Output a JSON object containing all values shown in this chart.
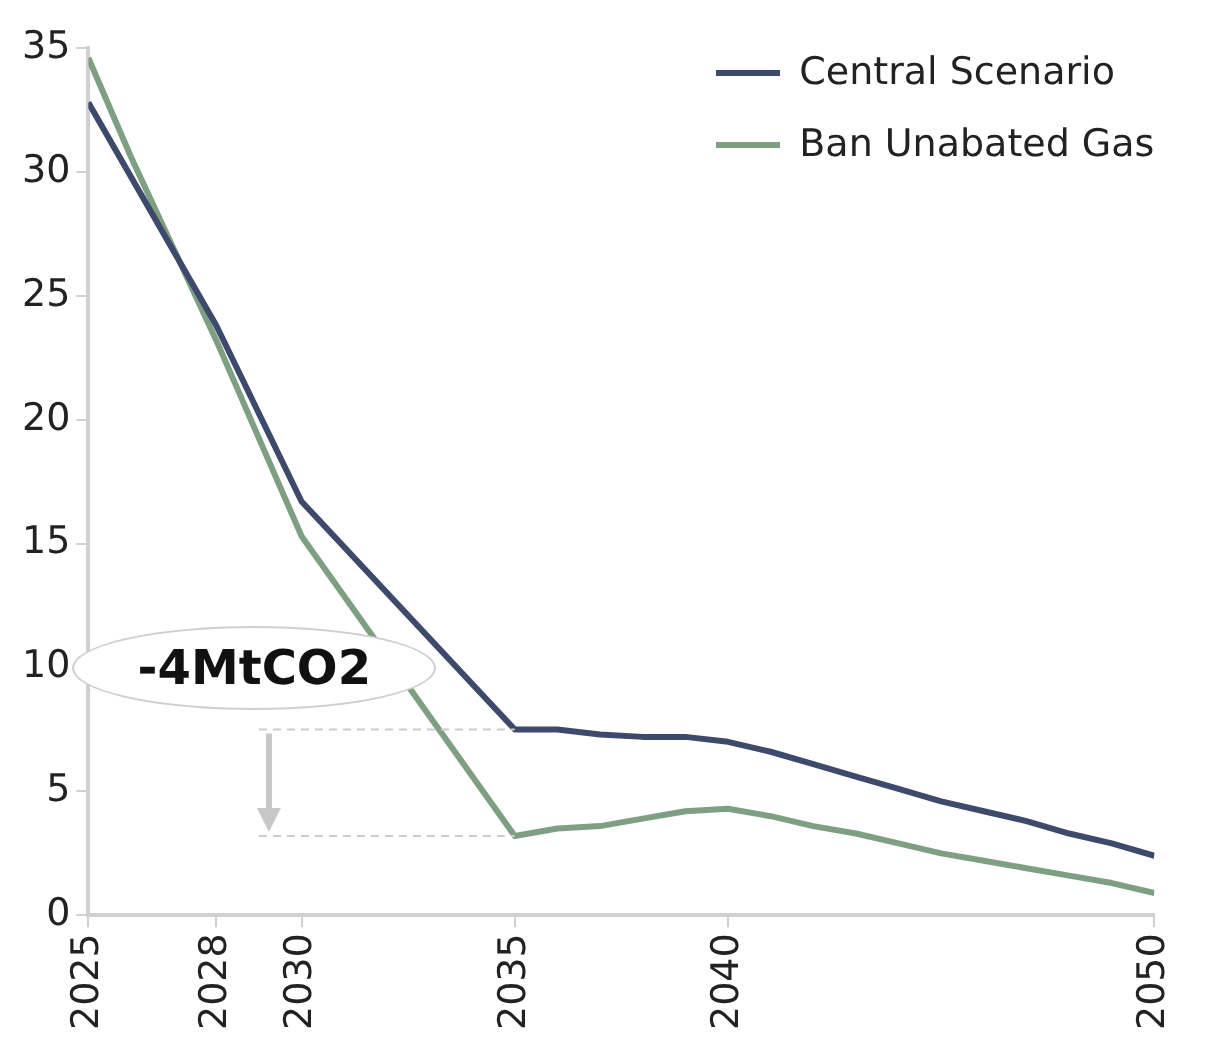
{
  "chart_data": {
    "type": "line",
    "xlim": [
      2025,
      2050
    ],
    "xticks": [
      2025,
      2028,
      2030,
      2035,
      2040,
      2050
    ],
    "ylim": [
      0,
      35
    ],
    "yticks": [
      0,
      5,
      10,
      15,
      20,
      25,
      30,
      35
    ],
    "grid": false,
    "legend": "top right",
    "marker": "none",
    "line_style": "solid",
    "annotations": [
      "-4MtCO2"
    ],
    "ref_lines": [
      {
        "axis": "y",
        "value": 7.5,
        "color": "#cccccc",
        "line_style": "dashed"
      },
      {
        "axis": "y",
        "value": 3.2,
        "color": "#cccccc",
        "line_style": "dashed"
      }
    ],
    "series": [
      {
        "name": "Central Scenario",
        "color": "#3d4a6b",
        "x": [
          2025,
          2028,
          2030,
          2035,
          2036,
          2037,
          2038,
          2039,
          2040,
          2041,
          2042,
          2043,
          2044,
          2045,
          2046,
          2047,
          2048,
          2049,
          2050
        ],
        "values": [
          32.8,
          23.8,
          16.7,
          7.5,
          7.5,
          7.3,
          7.2,
          7.2,
          7.0,
          6.6,
          6.1,
          5.6,
          5.1,
          4.6,
          4.2,
          3.8,
          3.3,
          2.9,
          2.4
        ]
      },
      {
        "name": "Ban Unabated Gas",
        "color": "#7f9f82",
        "x": [
          2025,
          2026,
          2028,
          2030,
          2035,
          2036,
          2037,
          2038,
          2039,
          2040,
          2041,
          2042,
          2043,
          2044,
          2045,
          2046,
          2047,
          2048,
          2049,
          2050
        ],
        "values": [
          34.6,
          30.6,
          23.2,
          15.3,
          3.2,
          3.5,
          3.6,
          3.9,
          4.2,
          4.3,
          4.0,
          3.6,
          3.3,
          2.9,
          2.5,
          2.2,
          1.9,
          1.6,
          1.3,
          0.9
        ]
      }
    ]
  }
}
